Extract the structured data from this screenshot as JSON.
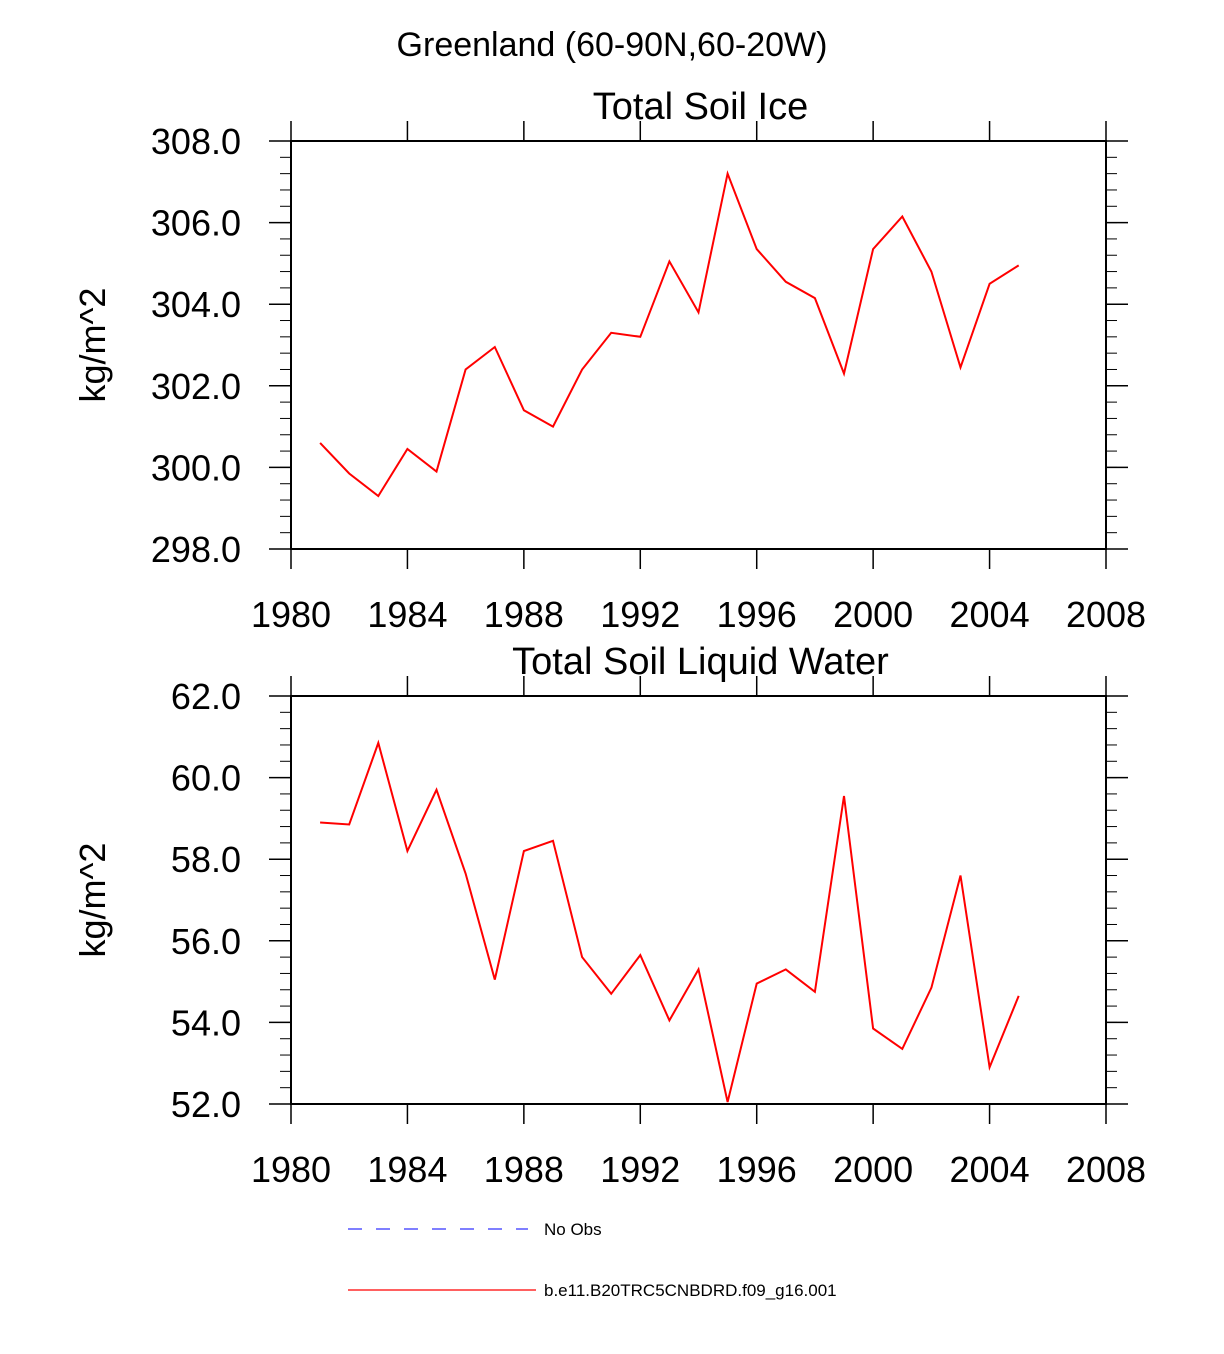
{
  "figure_title": "Greenland (60-90N,60-20W)",
  "legend": [
    {
      "label": "No Obs",
      "color": "#3333ff",
      "style": "dashed"
    },
    {
      "label": "b.e11.B20TRC5CNBDRD.f09_g16.001",
      "color": "#ff0000",
      "style": "solid"
    }
  ],
  "chart_data": [
    {
      "type": "line",
      "title": "Total Soil Ice",
      "xlabel": "",
      "ylabel": "kg/m^2",
      "xlim": [
        1980,
        2008
      ],
      "ylim": [
        298,
        308
      ],
      "xticks": [
        1980,
        1984,
        1988,
        1992,
        1996,
        2000,
        2004,
        2008
      ],
      "xtick_labels": [
        "1980",
        "1984",
        "1988",
        "1992",
        "1996",
        "2000",
        "2004",
        "2008"
      ],
      "yticks": [
        298,
        300,
        302,
        304,
        306,
        308
      ],
      "ytick_labels": [
        "298.0",
        "300.0",
        "302.0",
        "304.0",
        "306.0",
        "308.0"
      ],
      "x": [
        1981,
        1982,
        1983,
        1984,
        1985,
        1986,
        1987,
        1988,
        1989,
        1990,
        1991,
        1992,
        1993,
        1994,
        1995,
        1996,
        1997,
        1998,
        1999,
        2000,
        2001,
        2002,
        2003,
        2004,
        2005
      ],
      "series": [
        {
          "name": "b.e11.B20TRC5CNBDRD.f09_g16.001",
          "color": "#ff0000",
          "values": [
            300.6,
            299.85,
            299.3,
            300.45,
            299.9,
            302.4,
            302.95,
            301.4,
            301.0,
            302.4,
            303.3,
            303.2,
            305.05,
            303.8,
            307.2,
            305.35,
            304.55,
            304.15,
            302.3,
            305.35,
            306.15,
            304.8,
            302.45,
            304.5,
            304.95
          ]
        }
      ]
    },
    {
      "type": "line",
      "title": "Total Soil Liquid Water",
      "xlabel": "",
      "ylabel": "kg/m^2",
      "xlim": [
        1980,
        2008
      ],
      "ylim": [
        52,
        62
      ],
      "xticks": [
        1980,
        1984,
        1988,
        1992,
        1996,
        2000,
        2004,
        2008
      ],
      "xtick_labels": [
        "1980",
        "1984",
        "1988",
        "1992",
        "1996",
        "2000",
        "2004",
        "2008"
      ],
      "yticks": [
        52,
        54,
        56,
        58,
        60,
        62
      ],
      "ytick_labels": [
        "52.0",
        "54.0",
        "56.0",
        "58.0",
        "60.0",
        "62.0"
      ],
      "x": [
        1981,
        1982,
        1983,
        1984,
        1985,
        1986,
        1987,
        1988,
        1989,
        1990,
        1991,
        1992,
        1993,
        1994,
        1995,
        1996,
        1997,
        1998,
        1999,
        2000,
        2001,
        2002,
        2003,
        2004,
        2005
      ],
      "series": [
        {
          "name": "b.e11.B20TRC5CNBDRD.f09_g16.001",
          "color": "#ff0000",
          "values": [
            58.9,
            58.85,
            60.85,
            58.2,
            59.7,
            57.65,
            55.05,
            58.2,
            58.45,
            55.6,
            54.7,
            55.65,
            54.05,
            55.3,
            52.05,
            54.95,
            55.3,
            54.75,
            59.55,
            53.85,
            53.35,
            54.85,
            57.6,
            52.9,
            54.65
          ]
        }
      ]
    }
  ]
}
